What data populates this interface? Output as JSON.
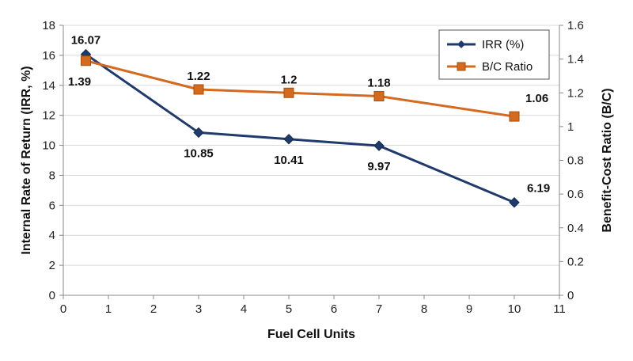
{
  "chart_data": {
    "type": "line",
    "xlabel": "Fuel Cell Units",
    "ylabel": "Internal Rate of Return (IRR, %)",
    "y2label": "Benefit-Cost Ratio (B/C)",
    "x": [
      0.5,
      3,
      5,
      7,
      10
    ],
    "xlim": [
      0,
      11
    ],
    "ylim": [
      0,
      18
    ],
    "y2lim": [
      0,
      1.6
    ],
    "xticks": [
      "0",
      "1",
      "2",
      "3",
      "4",
      "5",
      "6",
      "7",
      "8",
      "9",
      "10",
      "11"
    ],
    "yticks": [
      "0",
      "2",
      "4",
      "6",
      "8",
      "10",
      "12",
      "14",
      "16",
      "18"
    ],
    "y2ticks": [
      "0",
      "0.2",
      "0.4",
      "0.6",
      "0.8",
      "1",
      "1.2",
      "1.4",
      "1.6"
    ],
    "grid": "horizontal",
    "legend_position": "top-right",
    "series": [
      {
        "name": "IRR (%)",
        "axis": "left",
        "color": "#1f3a6b",
        "marker": "diamond",
        "values": [
          16.07,
          10.85,
          10.41,
          9.97,
          6.19
        ],
        "labels": [
          "16.07",
          "10.85",
          "10.41",
          "9.97",
          "6.19"
        ]
      },
      {
        "name": "B/C Ratio",
        "axis": "right",
        "color": "#d46a1f",
        "marker": "square",
        "values": [
          1.39,
          1.22,
          1.2,
          1.18,
          1.06
        ],
        "labels": [
          "1.39",
          "1.22",
          "1.2",
          "1.18",
          "1.06"
        ]
      }
    ]
  }
}
